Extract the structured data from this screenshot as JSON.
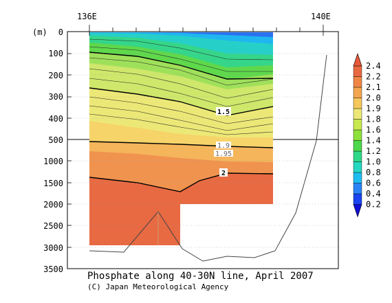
{
  "chart_data": {
    "type": "heatmap",
    "title": "Phosphate along 40-30N line, April 2007",
    "credit": "(C) Japan Meteorological Agency",
    "x_ticks": [
      "136E",
      "140E"
    ],
    "y_unit": "(m)",
    "y_ticks_upper": [
      "0",
      "100",
      "200",
      "300",
      "400",
      "500"
    ],
    "y_ticks_lower": [
      "1000",
      "1500",
      "2000",
      "2500",
      "3000",
      "3500"
    ],
    "colorbar": {
      "labels": [
        "0.2",
        "0.4",
        "0.6",
        "0.8",
        "1.0",
        "1.2",
        "1.4",
        "1.6",
        "1.8",
        "1.9",
        "2.0",
        "2.1",
        "2.2",
        "2.4"
      ],
      "colors": [
        "#1010d8",
        "#1a45f0",
        "#2a84f5",
        "#1fbcf0",
        "#26d7c2",
        "#2fd788",
        "#4cd84b",
        "#8ee03c",
        "#c9e84f",
        "#ece877",
        "#f5c75c",
        "#f4a550",
        "#ef8645",
        "#e86a42",
        "#e85838"
      ]
    },
    "contour_labels": [
      {
        "text": "1.5",
        "x": 139.1,
        "depth": 380
      },
      {
        "text": "1.9",
        "x": 139.1,
        "depth": 530
      },
      {
        "text": "1.95",
        "x": 139.1,
        "depth": 770
      },
      {
        "text": "2",
        "x": 139.1,
        "depth": 1280
      }
    ]
  }
}
